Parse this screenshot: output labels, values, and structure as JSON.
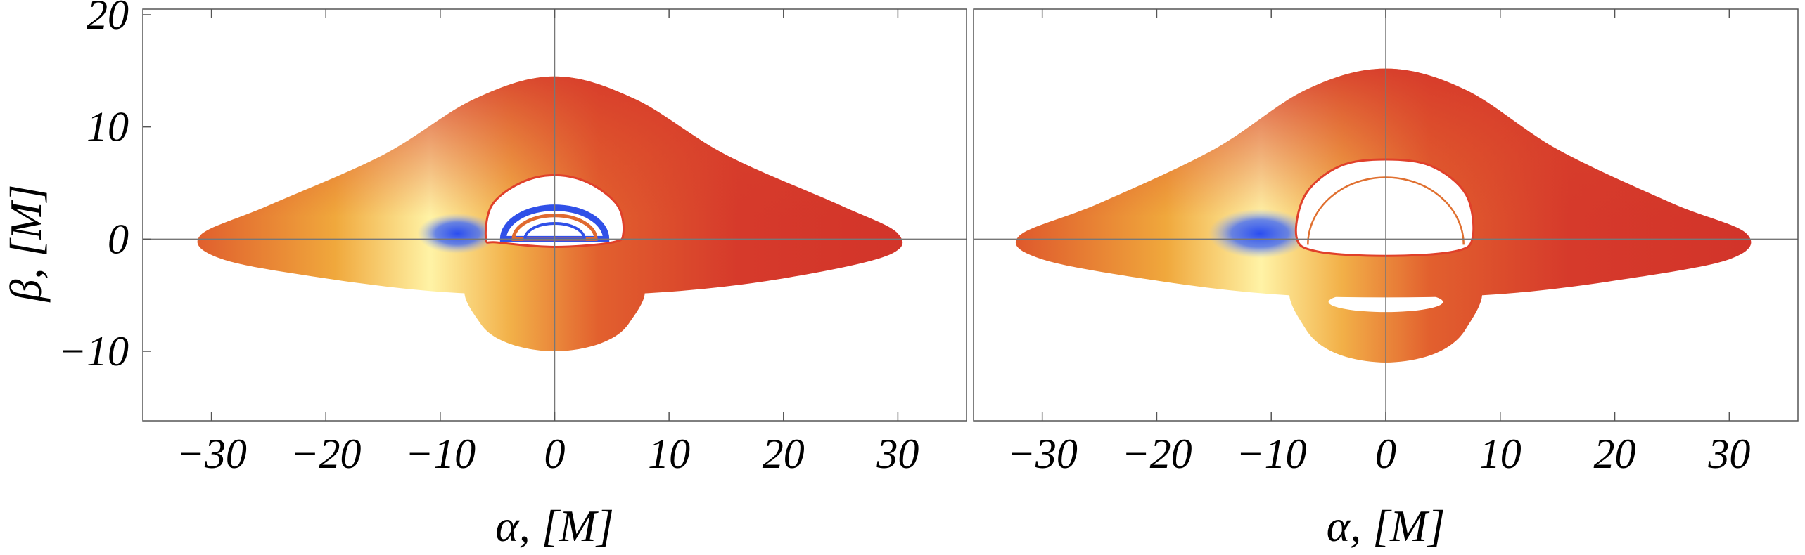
{
  "chart_data": [
    {
      "type": "image",
      "xlabel": "α, [M]",
      "ylabel": "β, [M]",
      "xlim": [
        -36,
        36
      ],
      "ylim": [
        -16.2,
        20.5
      ],
      "xticks": [
        {
          "value": -30,
          "label": "−30"
        },
        {
          "value": -20,
          "label": "−20"
        },
        {
          "value": -10,
          "label": "−10"
        },
        0,
        10,
        20,
        30
      ],
      "yticks": [
        {
          "value": -10,
          "label": "−10"
        },
        0,
        10,
        20
      ]
    },
    {
      "type": "image",
      "xlabel": "α, [M]",
      "xlim": [
        -36,
        36
      ],
      "ylim": [
        -16.2,
        20.5
      ],
      "xticks": [
        {
          "value": -30,
          "label": "−30"
        },
        {
          "value": -20,
          "label": "−20"
        },
        {
          "value": -10,
          "label": "−10"
        },
        0,
        10,
        20,
        30
      ]
    }
  ]
}
